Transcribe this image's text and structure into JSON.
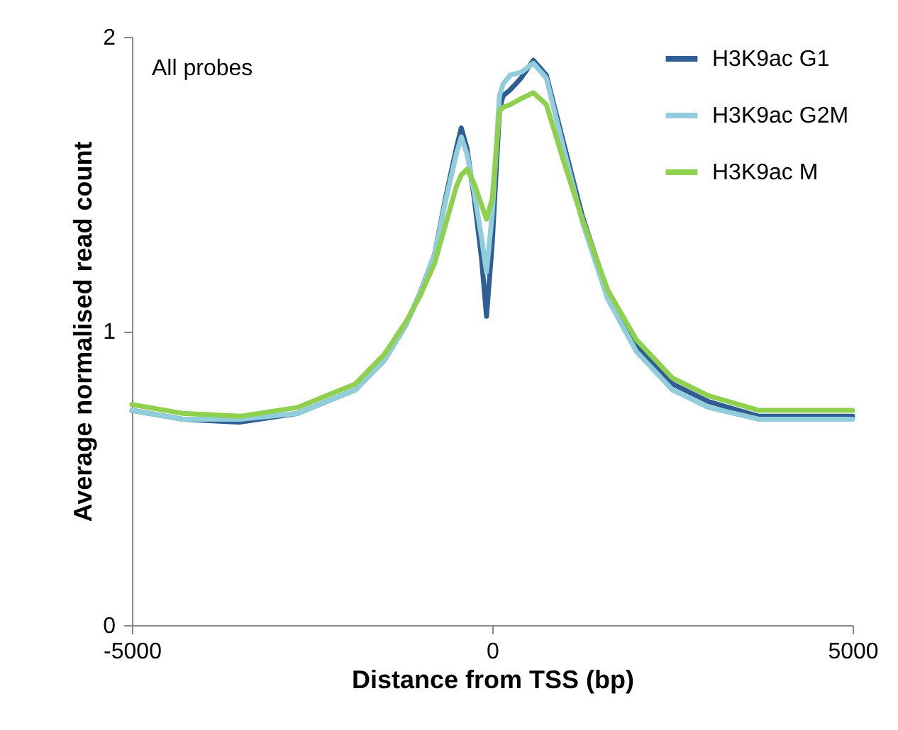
{
  "chart_data": {
    "type": "line",
    "xlabel": "Distance from TSS (bp)",
    "ylabel": "Average normalised read count",
    "annotations": [
      "All probes"
    ],
    "x": [
      -5000,
      -4300,
      -3500,
      -2700,
      -2300,
      -1900,
      -1500,
      -1200,
      -1000,
      -800,
      -650,
      -500,
      -430,
      -350,
      -250,
      -150,
      -80,
      0,
      100,
      150,
      250,
      400,
      570,
      750,
      1000,
      1250,
      1600,
      2000,
      2500,
      3000,
      3700,
      4300,
      5000
    ],
    "series": [
      {
        "name": "H3K9ac G1",
        "color": "#2f5f92",
        "values": [
          0.73,
          0.7,
          0.69,
          0.72,
          0.76,
          0.8,
          0.9,
          1.02,
          1.13,
          1.26,
          1.45,
          1.62,
          1.69,
          1.62,
          1.45,
          1.25,
          1.05,
          1.3,
          1.75,
          1.8,
          1.82,
          1.86,
          1.92,
          1.87,
          1.63,
          1.39,
          1.13,
          0.95,
          0.82,
          0.76,
          0.71,
          0.71,
          0.71
        ]
      },
      {
        "name": "H3K9ac G2M",
        "color": "#92cddc",
        "values": [
          0.73,
          0.7,
          0.7,
          0.72,
          0.76,
          0.8,
          0.9,
          1.02,
          1.13,
          1.26,
          1.44,
          1.6,
          1.66,
          1.6,
          1.47,
          1.32,
          1.2,
          1.4,
          1.8,
          1.84,
          1.87,
          1.88,
          1.91,
          1.86,
          1.61,
          1.37,
          1.11,
          0.93,
          0.8,
          0.74,
          0.7,
          0.7,
          0.7
        ]
      },
      {
        "name": "H3K9ac M",
        "color": "#8fd14f",
        "values": [
          0.75,
          0.72,
          0.71,
          0.74,
          0.78,
          0.82,
          0.92,
          1.03,
          1.12,
          1.23,
          1.36,
          1.49,
          1.53,
          1.55,
          1.5,
          1.43,
          1.38,
          1.45,
          1.75,
          1.76,
          1.77,
          1.79,
          1.81,
          1.77,
          1.57,
          1.38,
          1.14,
          0.97,
          0.84,
          0.78,
          0.73,
          0.73,
          0.73
        ]
      }
    ],
    "xlim": [
      -5000,
      5000
    ],
    "xticks": [
      -5000,
      0,
      5000
    ],
    "ylim": [
      0,
      2
    ],
    "yticks": [
      0,
      1,
      2
    ],
    "grid": false,
    "legend": "top right",
    "marker": "none",
    "line_style": "solid"
  }
}
